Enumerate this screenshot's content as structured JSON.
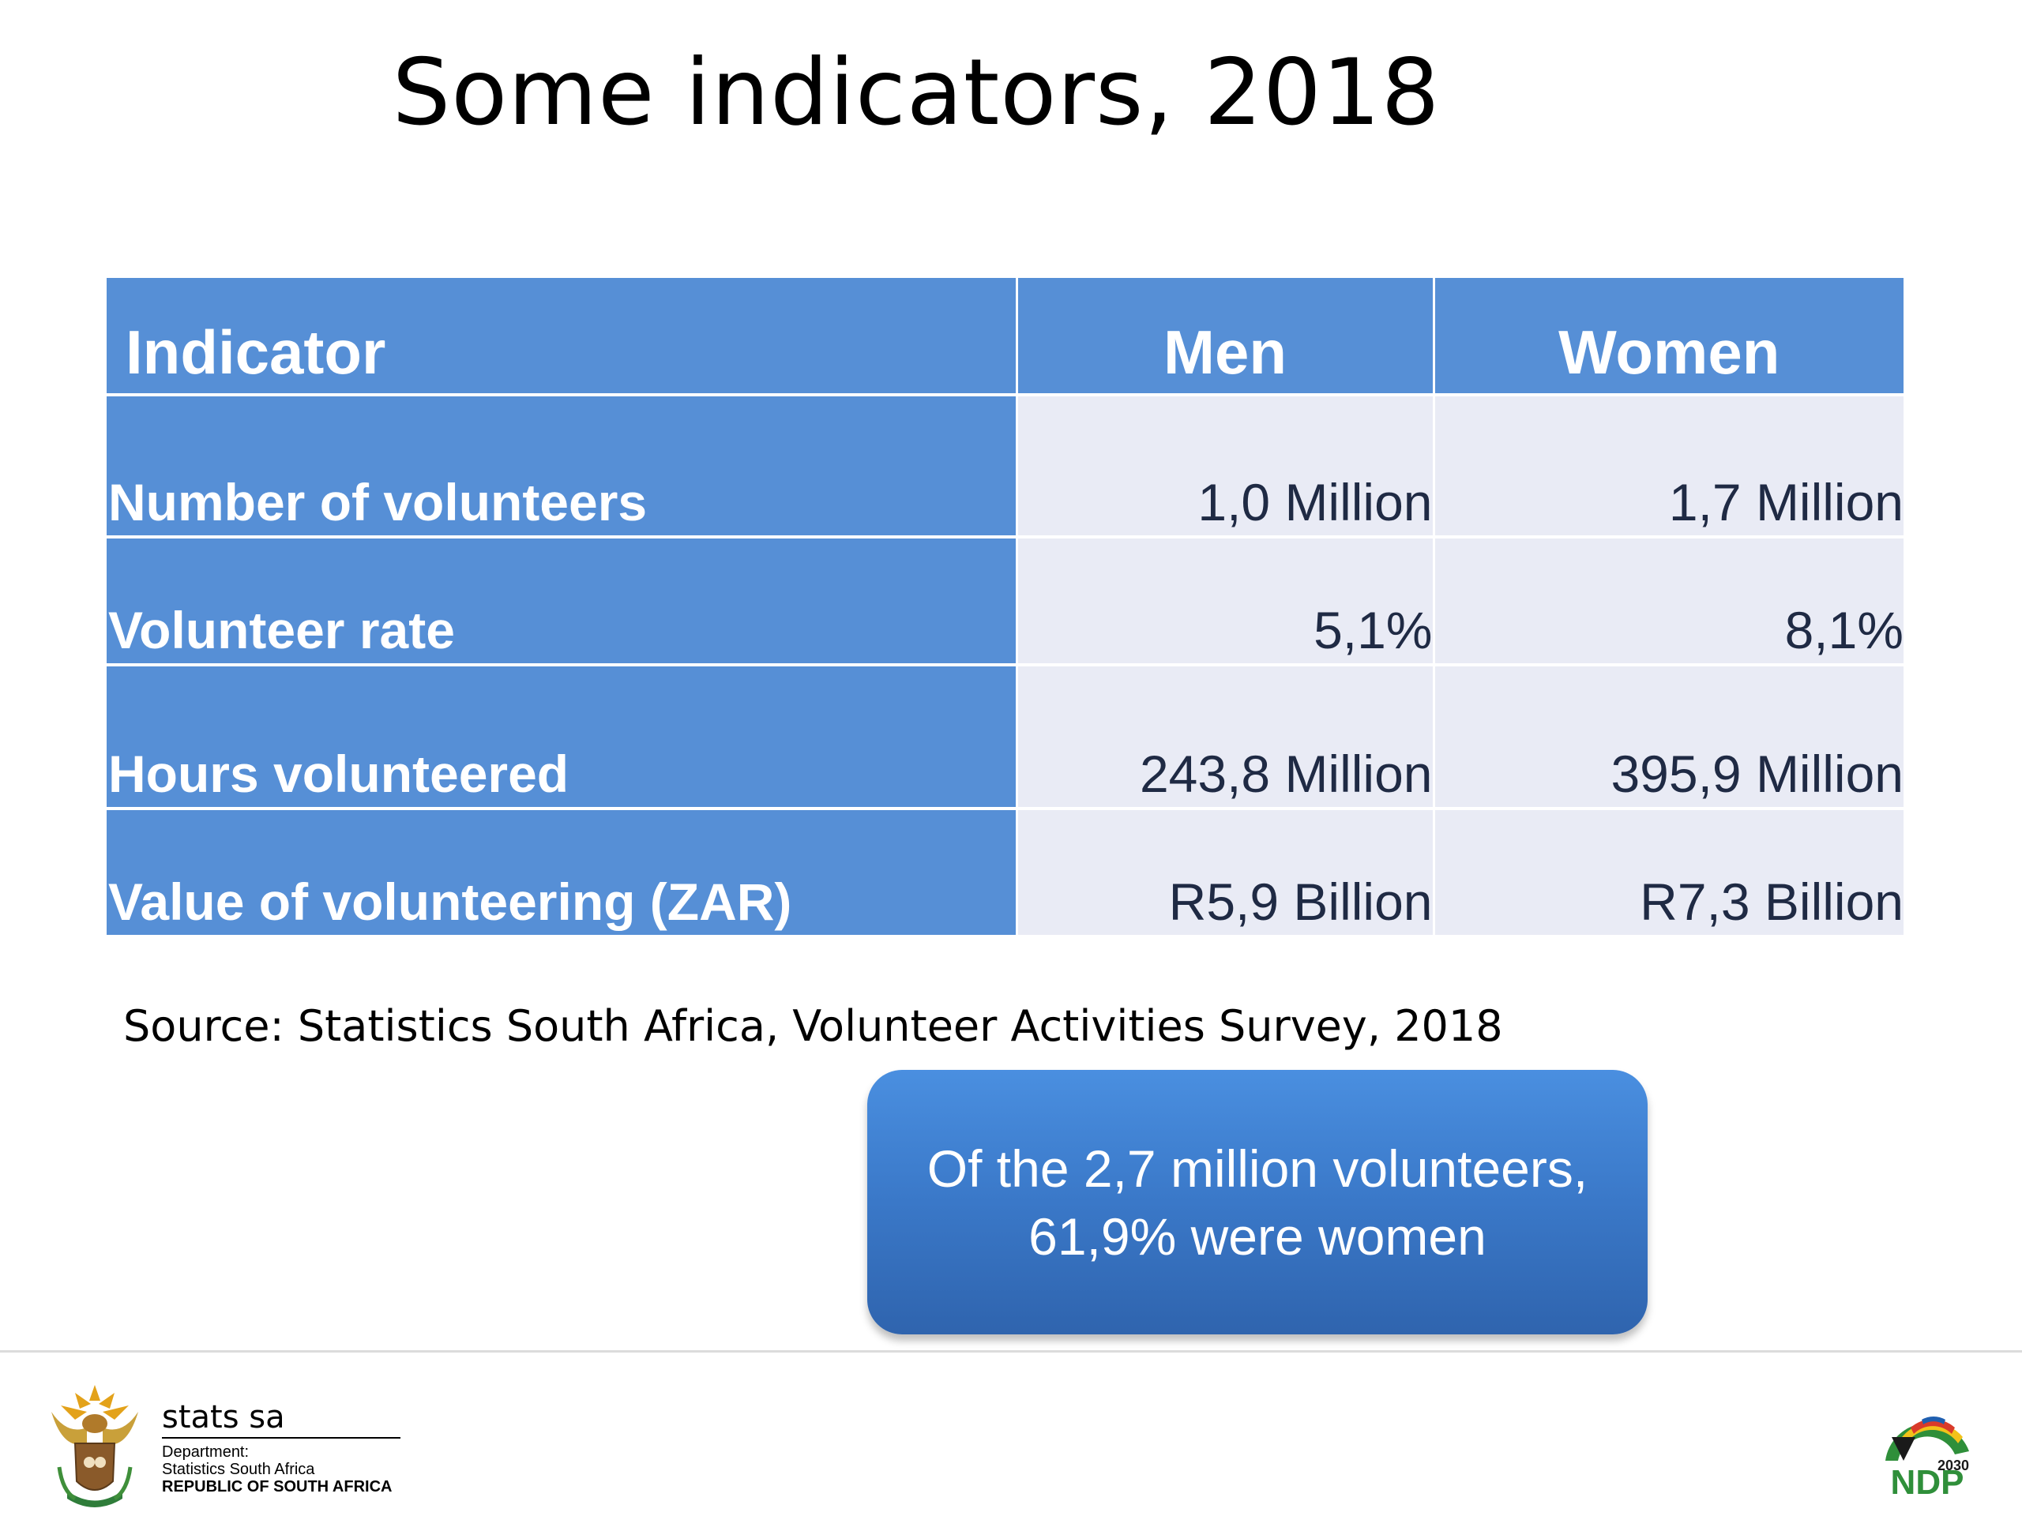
{
  "title": "Some indicators, 2018",
  "table": {
    "headers": [
      "Indicator",
      "Men",
      "Women"
    ],
    "rows": [
      {
        "indicator": "Number of volunteers",
        "men": "1,0 Million",
        "women": "1,7 Million"
      },
      {
        "indicator": "Volunteer rate",
        "men": "5,1%",
        "women": "8,1%"
      },
      {
        "indicator": "Hours volunteered",
        "men": "243,8 Million",
        "women": "395,9 Million"
      },
      {
        "indicator": "Value of volunteering (ZAR)",
        "men": "R5,9 Billion",
        "women": "R7,3 Billion"
      }
    ]
  },
  "source": "Source: Statistics South Africa, Volunteer Activities Survey, 2018",
  "callout": {
    "line1": "Of the 2,7 million volunteers,",
    "line2": "61,9% were women"
  },
  "footer": {
    "stats_name": "stats sa",
    "dept_line1": "Department:",
    "dept_line2": "Statistics South Africa",
    "dept_line3": "REPUBLIC OF SOUTH AFRICA",
    "ndp_year": "2030",
    "ndp_text": "NDP"
  },
  "colors": {
    "header_blue": "#568fd6",
    "cell_grey": "#e9ebf5",
    "callout_blue": "#3a78c8"
  }
}
